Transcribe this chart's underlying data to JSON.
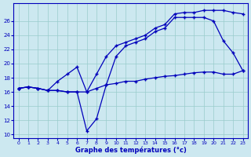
{
  "xlabel": "Graphe des températures (°c)",
  "ylabel": "",
  "bg_color": "#cce8f0",
  "line_color": "#0000bb",
  "grid_color": "#99cccc",
  "hours": [
    0,
    1,
    2,
    3,
    4,
    5,
    6,
    7,
    8,
    9,
    10,
    11,
    12,
    13,
    14,
    15,
    16,
    17,
    18,
    19,
    20,
    21,
    22,
    23
  ],
  "line1": [
    16.5,
    16.7,
    16.5,
    16.2,
    16.2,
    16.0,
    16.0,
    16.0,
    16.5,
    17.0,
    17.2,
    17.5,
    17.5,
    17.8,
    18.0,
    18.2,
    18.3,
    18.5,
    18.7,
    18.8,
    18.8,
    18.5,
    18.5,
    19.0
  ],
  "line2": [
    16.5,
    16.7,
    16.5,
    16.2,
    16.2,
    16.0,
    16.0,
    10.5,
    12.2,
    17.0,
    21.0,
    22.5,
    23.0,
    23.5,
    24.5,
    25.0,
    26.5,
    26.5,
    26.5,
    26.5,
    26.0,
    23.2,
    21.5,
    19.0
  ],
  "line3": [
    16.5,
    16.7,
    16.5,
    16.2,
    17.5,
    18.5,
    19.5,
    16.0,
    18.5,
    21.0,
    22.5,
    23.0,
    23.5,
    24.0,
    25.0,
    25.5,
    27.0,
    27.2,
    27.2,
    27.5,
    27.5,
    27.5,
    27.2,
    27.0
  ],
  "ylim": [
    9.5,
    28.5
  ],
  "xlim": [
    -0.5,
    23.5
  ],
  "yticks": [
    10,
    12,
    14,
    16,
    18,
    20,
    22,
    24,
    26
  ],
  "xticks": [
    0,
    1,
    2,
    3,
    4,
    5,
    6,
    7,
    8,
    9,
    10,
    11,
    12,
    13,
    14,
    15,
    16,
    17,
    18,
    19,
    20,
    21,
    22,
    23
  ]
}
